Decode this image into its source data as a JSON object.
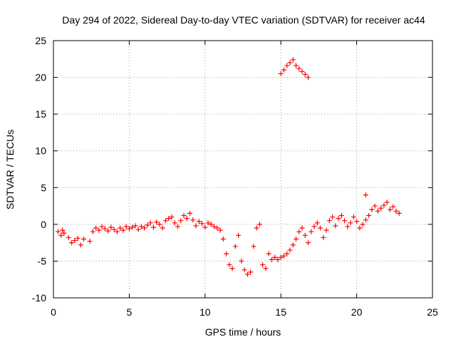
{
  "chart_data": {
    "type": "scatter",
    "title": "Day 294 of 2022, Sidereal Day-to-day VTEC variation (SDTVAR) for receiver ac44",
    "xlabel": "GPS time / hours",
    "ylabel": "SDTVAR / TECUs",
    "xlim": [
      0,
      25
    ],
    "ylim": [
      -10,
      25
    ],
    "x_ticks": [
      "0",
      "5",
      "10",
      "15",
      "20",
      "25"
    ],
    "y_ticks": [
      "-10",
      "-5",
      "0",
      "5",
      "10",
      "15",
      "20",
      "25"
    ],
    "grid": true,
    "marker": "+",
    "series": [
      {
        "name": "SDTVAR",
        "color": "#ff0000",
        "x": [
          0.3,
          0.5,
          0.6,
          0.7,
          1.0,
          1.2,
          1.4,
          1.6,
          1.8,
          2.0,
          2.4,
          2.6,
          2.8,
          3.0,
          3.2,
          3.4,
          3.6,
          3.8,
          4.0,
          4.2,
          4.4,
          4.6,
          4.8,
          5.0,
          5.2,
          5.4,
          5.6,
          5.8,
          6.0,
          6.2,
          6.4,
          6.6,
          6.8,
          7.0,
          7.2,
          7.4,
          7.6,
          7.8,
          8.0,
          8.2,
          8.4,
          8.6,
          8.8,
          9.0,
          9.2,
          9.4,
          9.6,
          9.8,
          10.0,
          10.2,
          10.4,
          10.6,
          10.8,
          11.0,
          11.2,
          11.4,
          11.6,
          11.8,
          12.0,
          12.2,
          12.4,
          12.6,
          12.8,
          13.0,
          13.2,
          13.4,
          13.6,
          13.8,
          14.0,
          14.2,
          14.4,
          14.6,
          14.8,
          15.0,
          15.2,
          15.4,
          15.6,
          15.8,
          16.0,
          16.2,
          16.4,
          16.6,
          16.8,
          17.0,
          17.2,
          17.4,
          17.6,
          17.8,
          18.0,
          18.2,
          18.4,
          18.6,
          18.8,
          19.0,
          19.2,
          19.4,
          19.6,
          19.8,
          20.0,
          20.2,
          20.4,
          20.6,
          20.8,
          21.0,
          21.2,
          21.4,
          21.6,
          21.8,
          22.0,
          22.2,
          22.4,
          22.6,
          22.8,
          15.0,
          15.2,
          15.4,
          15.6,
          15.8,
          16.0,
          16.2,
          16.4,
          16.6,
          16.8,
          20.6
        ],
        "y": [
          -1.0,
          -1.5,
          -0.8,
          -1.2,
          -1.8,
          -2.5,
          -2.2,
          -1.9,
          -2.8,
          -2.0,
          -2.3,
          -1.0,
          -0.5,
          -0.8,
          -0.3,
          -0.6,
          -0.9,
          -0.4,
          -0.7,
          -1.0,
          -0.5,
          -0.8,
          -0.3,
          -0.6,
          -0.4,
          -0.2,
          -0.7,
          -0.3,
          -0.5,
          -0.1,
          0.2,
          -0.4,
          0.3,
          0.0,
          -0.5,
          0.5,
          0.8,
          1.0,
          0.2,
          -0.3,
          0.5,
          1.2,
          0.8,
          1.5,
          0.6,
          -0.2,
          0.4,
          0.1,
          -0.4,
          0.2,
          0.0,
          -0.3,
          -0.5,
          -0.8,
          -2.0,
          -4.0,
          -5.5,
          -6.0,
          -3.0,
          -1.5,
          -5.0,
          -6.2,
          -6.8,
          -6.5,
          -3.0,
          -0.5,
          0.0,
          -5.5,
          -6.0,
          -4.0,
          -4.8,
          -4.5,
          -4.8,
          -4.5,
          -4.3,
          -4.0,
          -3.5,
          -2.8,
          -2.0,
          -1.0,
          -0.5,
          -1.5,
          -2.5,
          -1.0,
          -0.3,
          0.2,
          -0.5,
          -1.8,
          -0.8,
          0.5,
          1.0,
          -0.2,
          0.8,
          1.2,
          0.5,
          -0.3,
          0.2,
          1.0,
          0.4,
          -0.5,
          0.0,
          0.6,
          1.2,
          2.0,
          2.5,
          1.8,
          2.2,
          2.6,
          3.0,
          2.0,
          2.4,
          1.8,
          1.5,
          20.5,
          21.0,
          21.6,
          22.0,
          22.4,
          21.6,
          21.2,
          20.8,
          20.4,
          20.0,
          4.0
        ]
      }
    ]
  }
}
